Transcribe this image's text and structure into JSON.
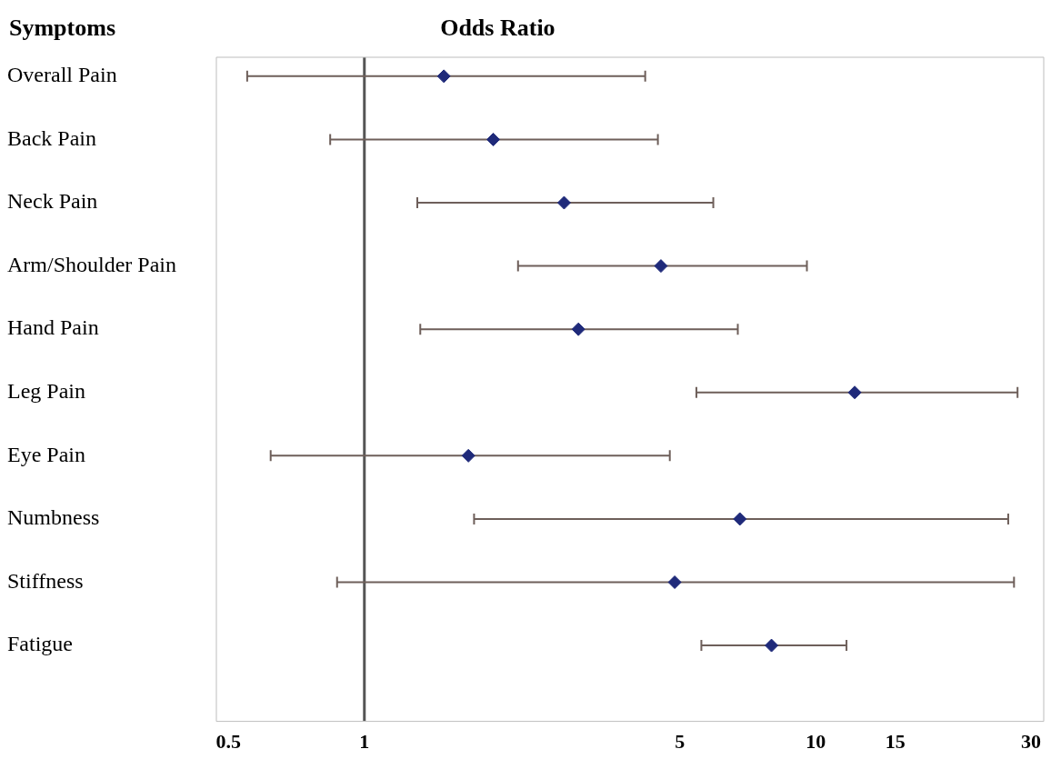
{
  "chart_data": {
    "type": "scatter",
    "orientation": "horizontal",
    "title": "Odds Ratio",
    "ylabel": "Symptoms",
    "categories": [
      "Overall Pain",
      "Back Pain",
      "Neck Pain",
      "Arm/Shoulder Pain",
      "Hand Pain",
      "Leg Pain",
      "Eye Pain",
      "Numbness",
      "Stiffness",
      "Fatigue"
    ],
    "values": [
      1.5,
      1.93,
      2.77,
      4.54,
      2.98,
      12.2,
      1.7,
      6.79,
      4.87,
      7.98
    ],
    "errors": [
      [
        0.55,
        4.19
      ],
      [
        0.84,
        4.47
      ],
      [
        1.31,
        5.93
      ],
      [
        2.19,
        9.56
      ],
      [
        1.33,
        6.72
      ],
      [
        5.44,
        28.0
      ],
      [
        0.62,
        4.75
      ],
      [
        1.75,
        26.7
      ],
      [
        0.87,
        27.5
      ],
      [
        5.58,
        11.7
      ]
    ],
    "color": "#1f2a7a",
    "log": "x",
    "xlim": [
      0.47,
      32
    ],
    "xticks": [
      0.5,
      1,
      5,
      10,
      15,
      30
    ],
    "ref_lines": [
      {
        "axis": "x",
        "value": 1,
        "color": "#555555"
      }
    ],
    "marker": "diamond",
    "grid": false,
    "legend": false
  }
}
